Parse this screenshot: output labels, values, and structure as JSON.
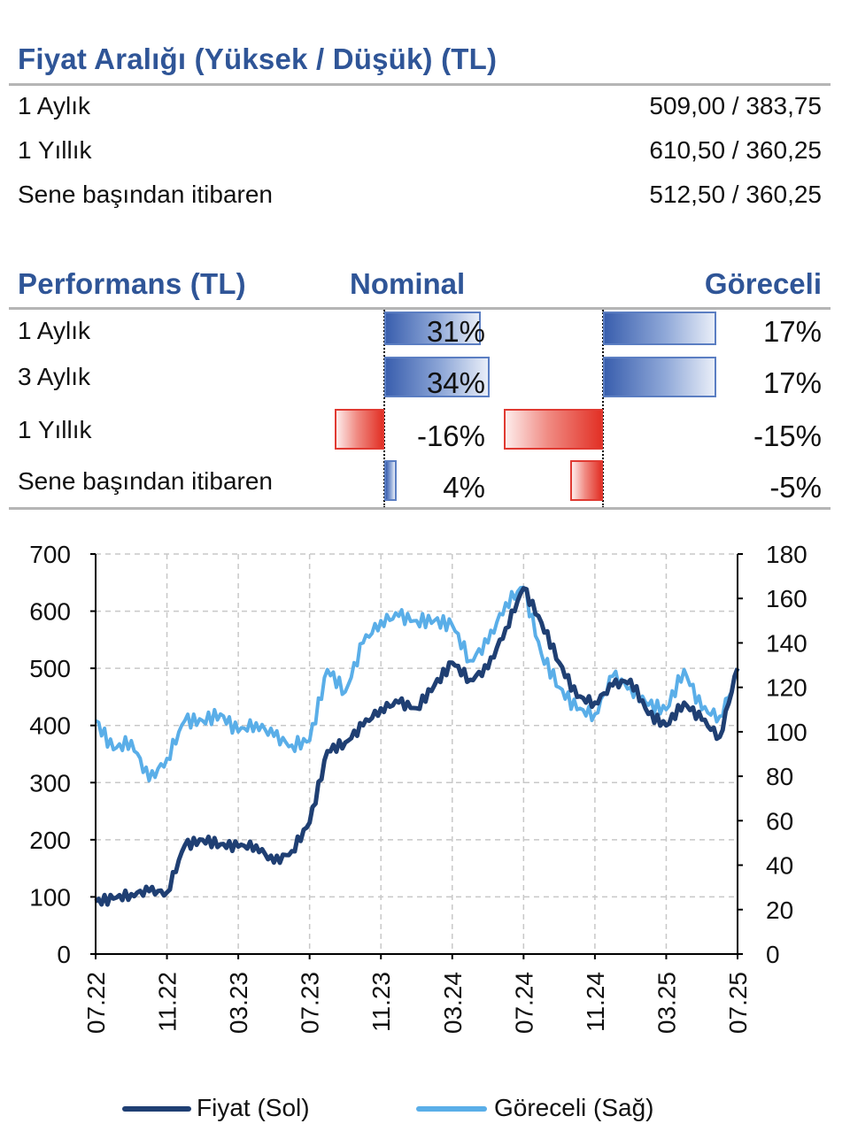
{
  "price_range": {
    "title": "Fiyat Aralığı (Yüksek / Düşük) (TL)",
    "rows": [
      {
        "label": "1 Aylık",
        "value": "509,00 / 383,75"
      },
      {
        "label": "1 Yıllık",
        "value": "610,50 / 360,25"
      },
      {
        "label": "Sene başından itibaren",
        "value": "512,50 / 360,25"
      }
    ]
  },
  "performance": {
    "title": "Performans (TL)",
    "nominal_header": "Nominal",
    "relative_header": "Göreceli",
    "rows": [
      {
        "label": "1 Aylık",
        "nominal": 31,
        "nominal_text": "31%",
        "relative": 17,
        "relative_text": "17%"
      },
      {
        "label": "3 Aylık",
        "nominal": 34,
        "nominal_text": "34%",
        "relative": 17,
        "relative_text": "17%"
      },
      {
        "label": "1 Yıllık",
        "nominal": -16,
        "nominal_text": "-16%",
        "relative": -15,
        "relative_text": "-15%"
      },
      {
        "label": "Sene başından itibaren",
        "nominal": 4,
        "nominal_text": "4%",
        "relative": -5,
        "relative_text": "-5%"
      }
    ],
    "colors": {
      "positive": "#4a6fb5",
      "negative": "#e23126"
    }
  },
  "chart_data": {
    "type": "line",
    "title": "",
    "x": [
      "07.22",
      "08.22",
      "09.22",
      "10.22",
      "11.22",
      "12.22",
      "01.23",
      "02.23",
      "03.23",
      "04.23",
      "05.23",
      "06.23",
      "07.23",
      "08.23",
      "09.23",
      "10.23",
      "11.23",
      "12.23",
      "01.24",
      "02.24",
      "03.24",
      "04.24",
      "05.24",
      "06.24",
      "07.24",
      "08.24",
      "09.24",
      "10.24",
      "11.24",
      "12.24",
      "01.25",
      "02.25",
      "03.25",
      "04.25",
      "05.25",
      "06.25",
      "07.25"
    ],
    "x_tick_labels": [
      "07.22",
      "11.22",
      "03.23",
      "07.23",
      "11.23",
      "03.24",
      "07.24",
      "11.24",
      "03.25",
      "07.25"
    ],
    "series": [
      {
        "name": "Fiyat (Sol)",
        "axis": "left",
        "color": "#1f3f73",
        "values": [
          92,
          97,
          105,
          110,
          108,
          190,
          200,
          192,
          188,
          190,
          160,
          180,
          230,
          355,
          370,
          400,
          430,
          440,
          430,
          470,
          510,
          480,
          500,
          570,
          640,
          580,
          510,
          450,
          440,
          470,
          480,
          420,
          400,
          440,
          410,
          380,
          500
        ]
      },
      {
        "name": "Göreceli (Sağ)",
        "axis": "right",
        "color": "#5aaee8",
        "values": [
          105,
          92,
          96,
          78,
          88,
          105,
          105,
          108,
          100,
          104,
          98,
          94,
          96,
          128,
          118,
          140,
          150,
          152,
          150,
          150,
          148,
          132,
          140,
          158,
          165,
          135,
          120,
          110,
          108,
          125,
          120,
          112,
          110,
          128,
          110,
          107,
          125
        ]
      }
    ],
    "yleft": {
      "min": 0,
      "max": 700,
      "ticks": [
        0,
        100,
        200,
        300,
        400,
        500,
        600,
        700
      ]
    },
    "yright": {
      "min": 0,
      "max": 180,
      "ticks": [
        0,
        20,
        40,
        60,
        80,
        100,
        120,
        140,
        160,
        180
      ]
    },
    "grid": true,
    "legend_position": "bottom"
  }
}
